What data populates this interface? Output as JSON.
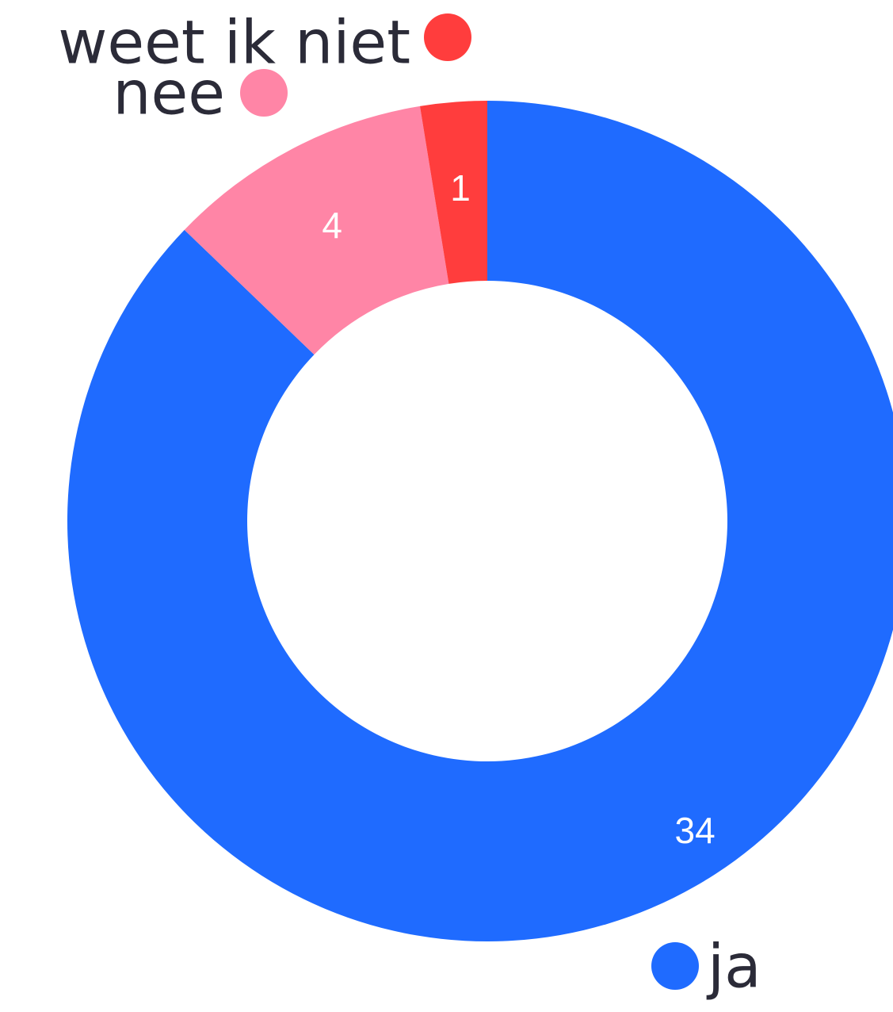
{
  "chart_data": {
    "type": "pie",
    "donut": true,
    "categories": [
      "ja",
      "nee",
      "weet ik niet"
    ],
    "values": [
      34,
      4,
      1
    ],
    "colors": [
      "#1f6bff",
      "#ff85a6",
      "#ff3d3d"
    ],
    "legend_position": "around",
    "title": ""
  }
}
